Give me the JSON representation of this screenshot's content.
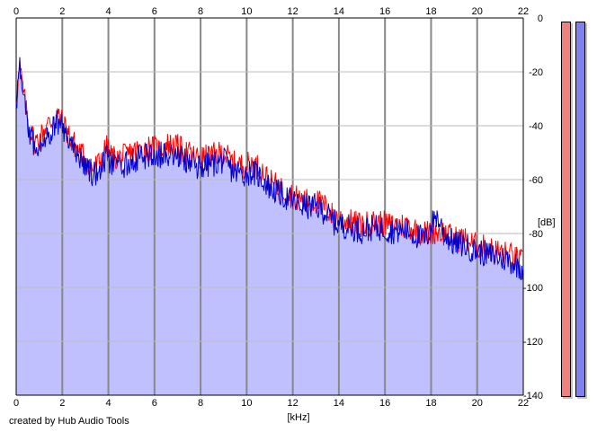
{
  "chart_data": {
    "type": "area",
    "xlabel": "[kHz]",
    "ylabel": "[dB]",
    "xlim": [
      0,
      22
    ],
    "ylim": [
      -140,
      0
    ],
    "x_ticks": [
      "0",
      "2",
      "4",
      "6",
      "8",
      "10",
      "12",
      "14",
      "16",
      "18",
      "20",
      "22"
    ],
    "y_ticks": [
      "0",
      "-20",
      "-40",
      "-60",
      "-80",
      "-100",
      "-120",
      "-140"
    ],
    "grid": true,
    "series": [
      {
        "color": "#ff0000",
        "x": [
          0,
          0.15,
          0.3,
          0.5,
          0.8,
          1.0,
          1.3,
          1.6,
          1.8,
          2.2,
          2.6,
          3.0,
          3.3,
          3.6,
          3.9,
          4.2,
          4.6,
          5.0,
          5.4,
          5.8,
          6.2,
          6.6,
          7.0,
          7.4,
          7.8,
          8.2,
          8.6,
          9.0,
          9.4,
          9.8,
          10.2,
          10.6,
          11.0,
          11.4,
          11.8,
          12.2,
          12.6,
          13.0,
          13.4,
          13.8,
          14.2,
          14.6,
          15.0,
          15.4,
          15.8,
          16.2,
          16.6,
          17.0,
          17.4,
          17.8,
          18.2,
          18.6,
          19.0,
          19.4,
          19.8,
          20.2,
          20.6,
          21.0,
          21.4,
          21.8,
          22
        ],
        "y": [
          -30,
          -18,
          -27,
          -38,
          -46,
          -45,
          -40,
          -38,
          -36,
          -42,
          -48,
          -52,
          -56,
          -54,
          -48,
          -52,
          -52,
          -50,
          -49,
          -48,
          -49,
          -47,
          -48,
          -50,
          -52,
          -52,
          -51,
          -50,
          -54,
          -55,
          -54,
          -56,
          -61,
          -63,
          -65,
          -67,
          -68,
          -68,
          -70,
          -74,
          -75,
          -76,
          -77,
          -76,
          -76,
          -77,
          -77,
          -77,
          -79,
          -80,
          -79,
          -80,
          -82,
          -82,
          -84,
          -85,
          -86,
          -87,
          -88,
          -90,
          -91
        ]
      },
      {
        "color": "#0000cc",
        "x": [
          0,
          0.15,
          0.3,
          0.5,
          0.8,
          1.0,
          1.3,
          1.6,
          1.8,
          2.2,
          2.6,
          3.0,
          3.3,
          3.6,
          3.9,
          4.2,
          4.6,
          5.0,
          5.4,
          5.8,
          6.2,
          6.6,
          7.0,
          7.4,
          7.8,
          8.2,
          8.6,
          9.0,
          9.4,
          9.8,
          10.2,
          10.6,
          11.0,
          11.4,
          11.8,
          12.2,
          12.6,
          13.0,
          13.4,
          13.8,
          14.2,
          14.6,
          15.0,
          15.4,
          15.8,
          16.2,
          16.6,
          17.0,
          17.4,
          17.8,
          18.2,
          18.6,
          19.0,
          19.4,
          19.8,
          20.2,
          20.6,
          21.0,
          21.4,
          21.8,
          22
        ],
        "y": [
          -32,
          -18,
          -29,
          -40,
          -48,
          -47,
          -43,
          -41,
          -38,
          -44,
          -50,
          -54,
          -58,
          -57,
          -52,
          -55,
          -55,
          -53,
          -52,
          -51,
          -51,
          -50,
          -51,
          -53,
          -55,
          -55,
          -54,
          -53,
          -57,
          -58,
          -57,
          -59,
          -63,
          -65,
          -67,
          -69,
          -70,
          -70,
          -72,
          -76,
          -77,
          -78,
          -79,
          -78,
          -78,
          -79,
          -79,
          -79,
          -81,
          -82,
          -73,
          -80,
          -84,
          -84,
          -86,
          -87,
          -88,
          -89,
          -90,
          -92,
          -93
        ]
      }
    ]
  },
  "meters": {
    "left_color": "#f08080",
    "right_color": "#8080f0"
  },
  "credit": "created by Hub Audio Tools"
}
